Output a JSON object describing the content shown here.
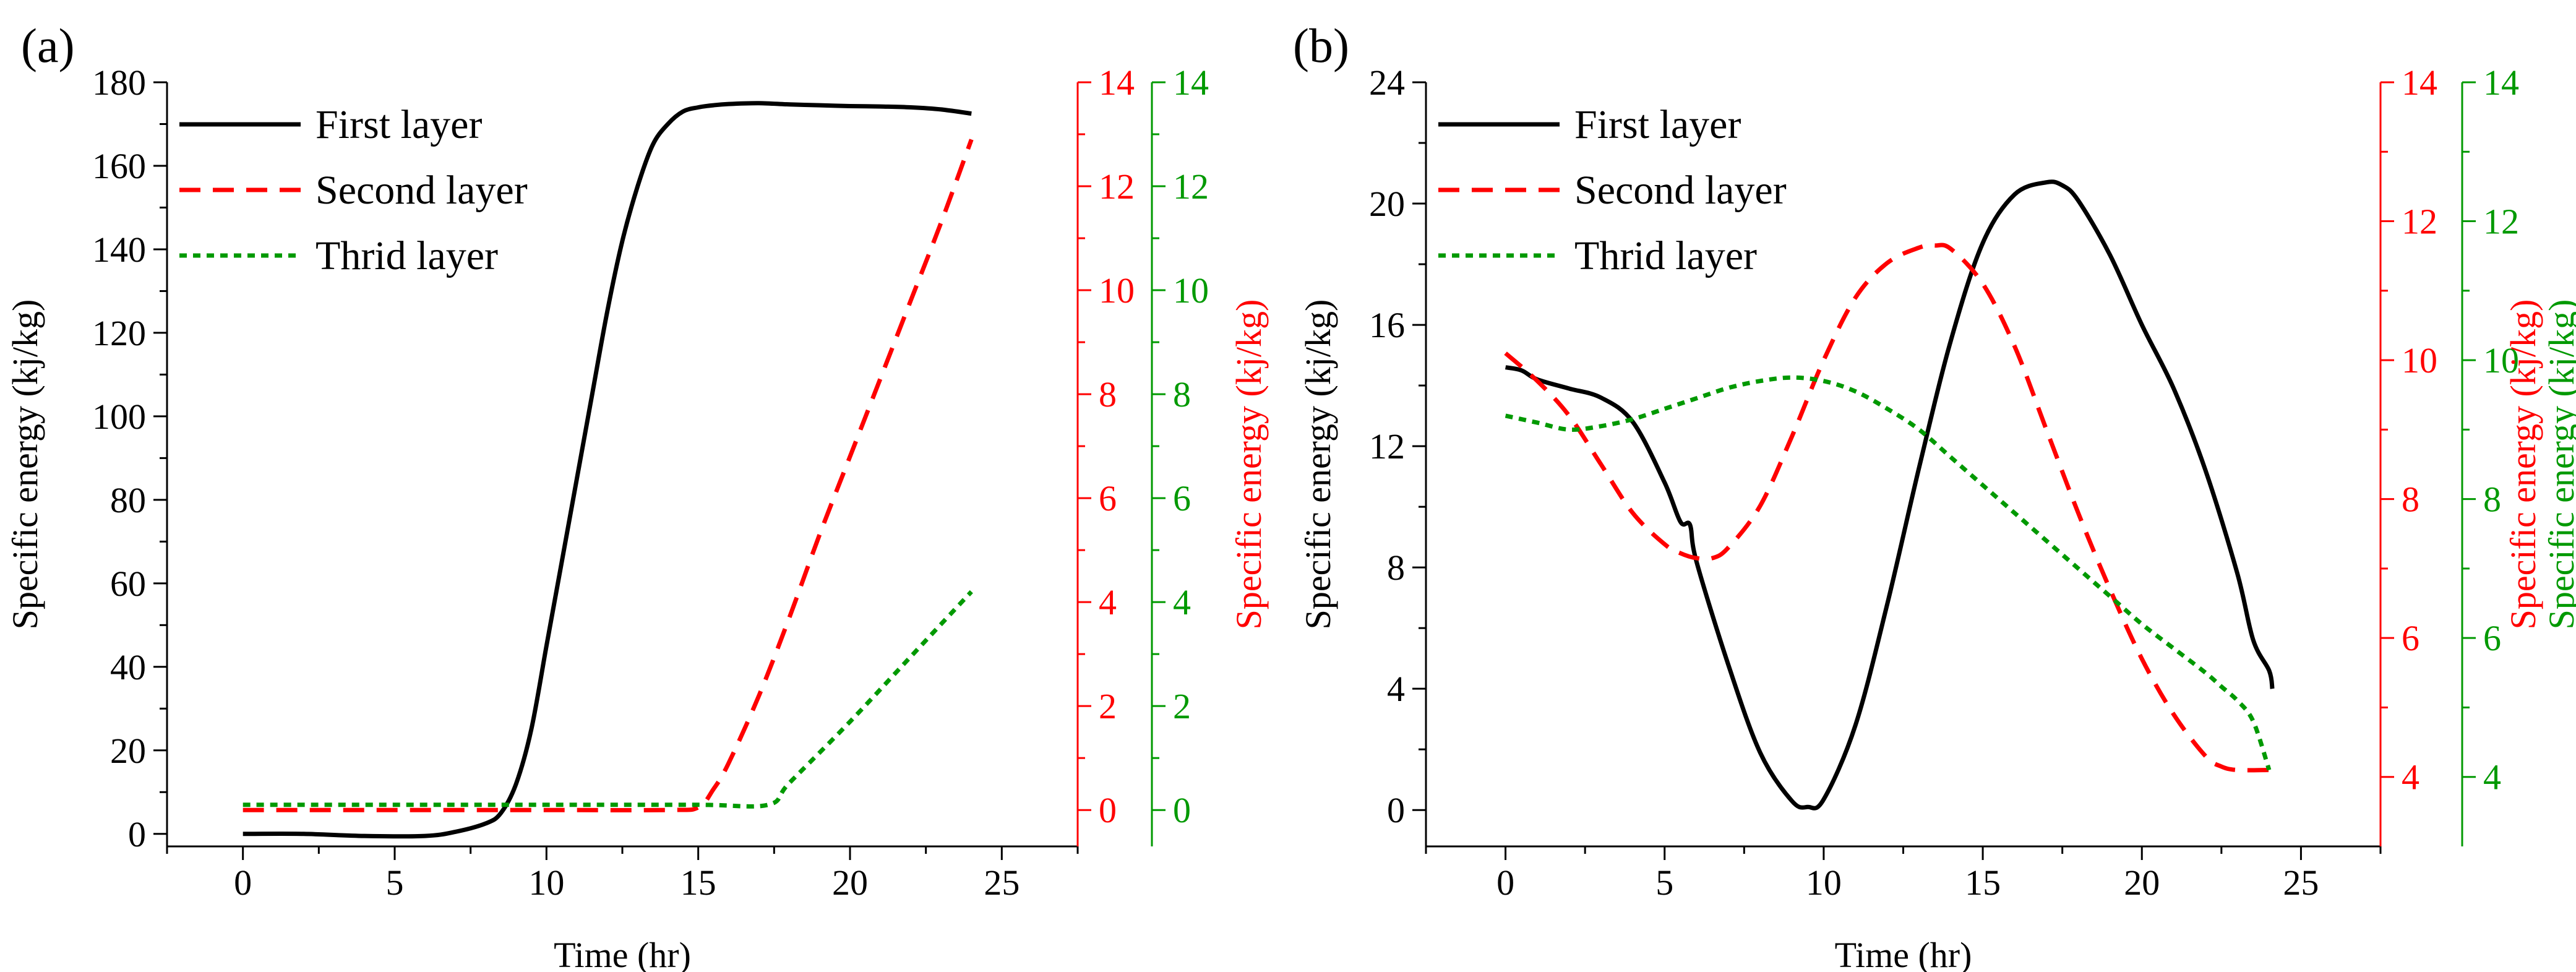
{
  "figure": {
    "layout": "two side-by-side panels"
  },
  "chart_data": [
    {
      "panel_label": "(a)",
      "type": "line",
      "title": "",
      "xlabel": "Time (hr)",
      "ylabel": "Specific energy (kj/kg)",
      "ylabel_right_1": "Specific energy (kj/kg)",
      "xlim": [
        -2.5,
        27.5
      ],
      "x_ticks": [
        0,
        5,
        10,
        15,
        20,
        25
      ],
      "y_left": {
        "lim": [
          -3,
          180
        ],
        "ticks": [
          0,
          20,
          40,
          60,
          80,
          100,
          120,
          140,
          160,
          180
        ],
        "color": "#000000"
      },
      "y_right1": {
        "lim": [
          -0.7,
          14
        ],
        "ticks": [
          0,
          2,
          4,
          6,
          8,
          10,
          12,
          14
        ],
        "color": "#ff0000",
        "label_shown": true
      },
      "y_right2": {
        "lim": [
          -0.7,
          14
        ],
        "ticks": [
          0,
          2,
          4,
          6,
          8,
          10,
          12,
          14
        ],
        "color": "#009900",
        "label_shown": false
      },
      "legend": {
        "location": "top-left",
        "entries": [
          "First layer",
          "Second layer",
          "Thrid layer"
        ]
      },
      "series": [
        {
          "name": "First layer",
          "axis": "left",
          "color": "#000000",
          "dash": "solid",
          "x": [
            0,
            2,
            4,
            6,
            7,
            8,
            8.5,
            9,
            9.5,
            10,
            10.5,
            11,
            11.5,
            12,
            12.5,
            13,
            13.5,
            14,
            14.5,
            15,
            15.5,
            16,
            17,
            18,
            19,
            20,
            21,
            22,
            23,
            24
          ],
          "y": [
            0,
            0,
            -0.5,
            -0.5,
            0.5,
            2.5,
            5,
            12,
            25,
            45,
            65,
            85,
            105,
            125,
            142,
            155,
            165,
            170,
            173,
            174,
            174.5,
            174.8,
            175,
            174.7,
            174.5,
            174.3,
            174.2,
            174,
            173.5,
            172.5
          ]
        },
        {
          "name": "Second layer",
          "axis": "right1",
          "color": "#ff0000",
          "dash": "dashed",
          "x": [
            0,
            5,
            10,
            14,
            15,
            15.5,
            16,
            17,
            18,
            19,
            20,
            21,
            22,
            23,
            24
          ],
          "y": [
            0,
            0,
            0,
            0,
            0.05,
            0.4,
            0.9,
            2.2,
            3.7,
            5.3,
            6.8,
            8.3,
            9.8,
            11.3,
            12.9
          ]
        },
        {
          "name": "Thrid layer",
          "axis": "right2",
          "color": "#009900",
          "dash": "dotted",
          "x": [
            0,
            5,
            10,
            15,
            17.3,
            18,
            20,
            22,
            24
          ],
          "y": [
            0.1,
            0.1,
            0.1,
            0.1,
            0.1,
            0.52,
            1.7,
            2.95,
            4.2
          ]
        }
      ]
    },
    {
      "panel_label": "(b)",
      "type": "line",
      "title": "",
      "xlabel": "Time (hr)",
      "ylabel": "Specific energy (kj/kg)",
      "ylabel_right_1": "Specific energy (kj/kg)",
      "ylabel_right_2": "Specific energy (kj/kg)",
      "xlim": [
        -2.5,
        27.5
      ],
      "x_ticks": [
        0,
        5,
        10,
        15,
        20,
        25
      ],
      "y_left": {
        "lim": [
          -1.2,
          24
        ],
        "ticks": [
          0,
          4,
          8,
          12,
          16,
          20,
          24
        ],
        "color": "#000000"
      },
      "y_right1": {
        "lim": [
          3,
          14
        ],
        "ticks": [
          4,
          6,
          8,
          10,
          12,
          14
        ],
        "color": "#ff0000",
        "label_shown": true
      },
      "y_right2": {
        "lim": [
          3,
          14
        ],
        "ticks": [
          4,
          6,
          8,
          10,
          12,
          14
        ],
        "color": "#009900",
        "label_shown": true
      },
      "legend": {
        "location": "top-left",
        "entries": [
          "First layer",
          "Second layer",
          "Thrid layer"
        ]
      },
      "series": [
        {
          "name": "First layer",
          "axis": "left",
          "color": "#000000",
          "dash": "solid",
          "x": [
            0,
            0.5,
            1,
            2,
            3,
            4,
            5,
            5.5,
            5.8,
            6,
            7,
            8,
            9,
            9.5,
            10,
            11,
            12,
            13,
            14,
            15,
            16,
            17,
            17.5,
            18,
            19,
            20,
            21,
            22,
            23,
            23.5,
            24,
            24.1
          ],
          "y": [
            14.6,
            14.5,
            14.2,
            13.9,
            13.6,
            12.8,
            10.8,
            9.5,
            9.4,
            8.2,
            4.8,
            1.9,
            0.3,
            0.1,
            0.35,
            2.8,
            6.8,
            11.3,
            15.5,
            18.7,
            20.3,
            20.7,
            20.6,
            20.1,
            18.3,
            16.0,
            13.9,
            11.2,
            7.8,
            5.6,
            4.6,
            4.0
          ]
        },
        {
          "name": "Second layer",
          "axis": "right1",
          "color": "#ff0000",
          "dash": "dashed",
          "x": [
            0,
            1,
            2,
            3,
            4,
            5,
            5.5,
            6,
            6.5,
            7,
            8,
            9,
            10,
            11,
            12,
            13,
            13.5,
            14,
            15,
            16,
            17,
            18,
            19,
            20,
            21,
            22,
            22.5,
            23,
            24
          ],
          "y": [
            10.1,
            9.7,
            9.2,
            8.5,
            7.8,
            7.35,
            7.22,
            7.15,
            7.15,
            7.3,
            7.9,
            8.9,
            10.0,
            10.9,
            11.4,
            11.62,
            11.65,
            11.6,
            11.1,
            10.2,
            9.0,
            7.8,
            6.7,
            5.7,
            4.9,
            4.3,
            4.15,
            4.1,
            4.1
          ]
        },
        {
          "name": "Thrid layer",
          "axis": "right2",
          "color": "#009900",
          "dash": "dotted",
          "x": [
            0,
            1,
            2,
            3,
            4,
            5,
            6,
            7,
            8,
            9,
            10,
            11,
            12,
            13,
            14,
            15,
            16,
            17,
            18,
            19,
            20,
            21,
            22,
            22.5,
            23,
            23.5,
            24
          ],
          "y": [
            9.2,
            9.1,
            9.0,
            9.05,
            9.15,
            9.3,
            9.45,
            9.6,
            9.7,
            9.75,
            9.7,
            9.55,
            9.3,
            9.0,
            8.6,
            8.2,
            7.8,
            7.4,
            7.0,
            6.6,
            6.2,
            5.85,
            5.5,
            5.3,
            5.1,
            4.8,
            4.1
          ]
        }
      ]
    }
  ]
}
